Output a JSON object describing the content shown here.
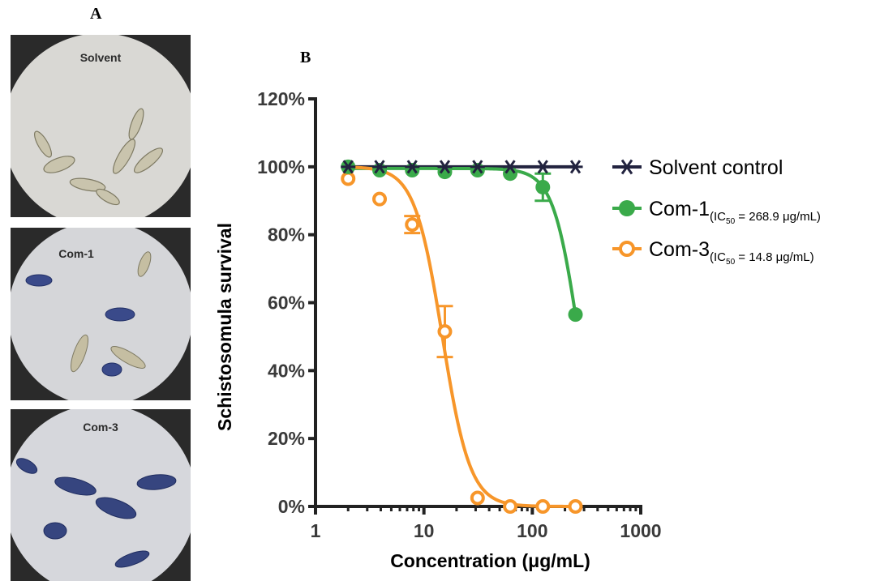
{
  "panels": {
    "a_label": "A",
    "b_label": "B",
    "photos": [
      {
        "label": "Solvent"
      },
      {
        "label": "Com-1"
      },
      {
        "label": "Com-3"
      }
    ]
  },
  "colors": {
    "solvent": "#22233f",
    "com1": "#3aaa4a",
    "com3": "#f7962a",
    "axis": "#222222"
  },
  "chart_data": {
    "type": "scatter",
    "xlabel": "Concentration (μg/mL)",
    "ylabel": "Schistosomula  survival",
    "xscale": "log",
    "xlim": [
      1,
      1000
    ],
    "ylim": [
      0,
      120
    ],
    "xticks": [
      1,
      10,
      100,
      1000
    ],
    "xtick_labels": [
      "1",
      "10",
      "100",
      "1000"
    ],
    "yticks": [
      0,
      20,
      40,
      60,
      80,
      100,
      120
    ],
    "ytick_labels": [
      "0%",
      "20%",
      "40%",
      "60%",
      "80%",
      "100%",
      "120%"
    ],
    "legend_position": "right",
    "series": [
      {
        "name": "Solvent control",
        "marker": "asterisk",
        "x": [
          2,
          3.9,
          7.8,
          15.6,
          31.25,
          62.5,
          125,
          250
        ],
        "y": [
          100,
          100,
          100,
          100,
          100,
          100,
          100,
          100
        ],
        "fit": {
          "type": "flat",
          "y": 100
        }
      },
      {
        "name": "Com-1",
        "name_subscript": "(IC50 = 268.9 μg/mL)",
        "sub_prefix": "(IC",
        "sub_index": "50",
        "sub_suffix": " = 268.9 μg/mL)",
        "marker": "filled-circle",
        "x": [
          2,
          3.9,
          7.8,
          15.6,
          31.25,
          62.5,
          125,
          250
        ],
        "y": [
          100,
          99,
          99,
          98.5,
          99,
          98,
          94,
          56.5
        ],
        "yerr": [
          0,
          0,
          0,
          0,
          0,
          0,
          4,
          0
        ],
        "fit": {
          "type": "sigmoid",
          "ic50": 268.9,
          "top": 99.5,
          "bottom": 0,
          "hill": 3.7
        }
      },
      {
        "name": "Com-3",
        "name_subscript": "(IC50 = 14.8 μg/mL)",
        "sub_prefix": "(IC",
        "sub_index": "50",
        "sub_suffix": " = 14.8 μg/mL)",
        "marker": "open-circle",
        "x": [
          2,
          3.9,
          7.8,
          15.6,
          31.25,
          62.5,
          125,
          250
        ],
        "y": [
          96.5,
          90.5,
          83,
          51.5,
          2.5,
          0,
          0,
          0
        ],
        "yerr": [
          0,
          0,
          2.5,
          7.5,
          0,
          0,
          0,
          0
        ],
        "fit": {
          "type": "sigmoid",
          "ic50": 14.8,
          "top": 100,
          "bottom": 0,
          "hill": 3.4
        }
      }
    ]
  }
}
